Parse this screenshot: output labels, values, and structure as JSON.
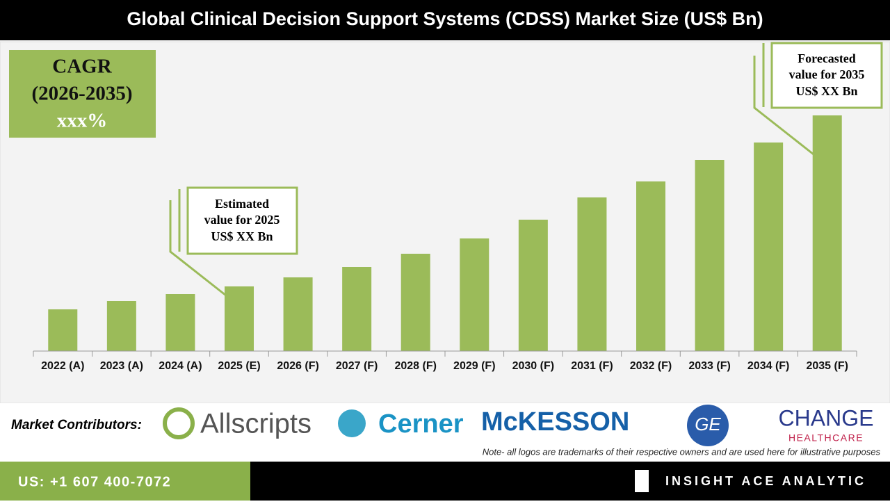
{
  "chart_data": {
    "type": "bar",
    "title": "Global Clinical Decision Support Systems (CDSS) Market Size (US$ Bn)",
    "categories": [
      "2022 (A)",
      "2023 (A)",
      "2024 (A)",
      "2025 (E)",
      "2026 (F)",
      "2027 (F)",
      "2028 (F)",
      "2029 (F)",
      "2030 (F)",
      "2031 (F)",
      "2032 (F)",
      "2033 (F)",
      "2034 (F)",
      "2035 (F)"
    ],
    "values": [
      60,
      72,
      82,
      93,
      106,
      121,
      140,
      162,
      189,
      221,
      244,
      275,
      300,
      339
    ],
    "color": "#9bbb59",
    "cagr": [
      "CAGR",
      "(2026-2035)",
      "xxx%"
    ],
    "estimate_callout": [
      "Estimated",
      "value for 2025",
      "US$ XX Bn"
    ],
    "forecast_callout": [
      "Forecasted",
      "value for 2035",
      "US$ XX Bn"
    ]
  },
  "contributors": {
    "label": "Market Contributors:",
    "logos": [
      "Allscripts",
      "Cerner",
      "McKESSON",
      "GE",
      "CHANGE",
      "HEALTHCARE"
    ],
    "note": "Note- all logos are trademarks of their respective owners and are used here for illustrative purposes"
  },
  "footer": {
    "phone": "US: +1 607 400-7072",
    "brand": "INSIGHT ACE ANALYTIC"
  }
}
